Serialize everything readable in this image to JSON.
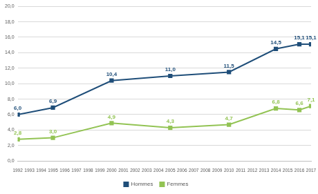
{
  "chart_data": {
    "type": "line",
    "x": [
      1992,
      1995,
      2000,
      2005,
      2010,
      2014,
      2016,
      2017
    ],
    "xlim": [
      1992,
      2017
    ],
    "xticks": [
      1992,
      1993,
      1994,
      1995,
      1996,
      1997,
      1998,
      1999,
      2000,
      2001,
      2002,
      2003,
      2004,
      2005,
      2006,
      2007,
      2008,
      2009,
      2010,
      2011,
      2012,
      2013,
      2014,
      2015,
      2016,
      2017
    ],
    "ylim": [
      0,
      20
    ],
    "yticks": [
      {
        "value": 0,
        "label": "0,0"
      },
      {
        "value": 2,
        "label": "2,0"
      },
      {
        "value": 4,
        "label": "4,0"
      },
      {
        "value": 6,
        "label": "6,0"
      },
      {
        "value": 8,
        "label": "8,0"
      },
      {
        "value": 10,
        "label": "10,0"
      },
      {
        "value": 12,
        "label": "12,0"
      },
      {
        "value": 14,
        "label": "14,0"
      },
      {
        "value": 16,
        "label": "16,0"
      },
      {
        "value": 18,
        "label": "18,0"
      },
      {
        "value": 20,
        "label": "20,0"
      }
    ],
    "grid": true,
    "legend": "bottom",
    "data_labels": true,
    "series": [
      {
        "name": "Hommes",
        "color": "#1F4E79",
        "marker": "square",
        "values": [
          6.0,
          6.9,
          10.4,
          11.0,
          11.5,
          14.5,
          15.1,
          15.1
        ],
        "value_labels": [
          "6,0",
          "6,9",
          "10,4",
          "11,0",
          "11,5",
          "14,5",
          "15,1",
          "15,1"
        ]
      },
      {
        "name": "Femmes",
        "color": "#92C353",
        "marker": "square",
        "values": [
          2.8,
          3.0,
          4.9,
          4.3,
          4.7,
          6.8,
          6.6,
          7.1
        ],
        "value_labels": [
          "2,8",
          "3,0",
          "4,9",
          "4,3",
          "4,7",
          "6,8",
          "6,6",
          "7,1"
        ]
      }
    ]
  }
}
